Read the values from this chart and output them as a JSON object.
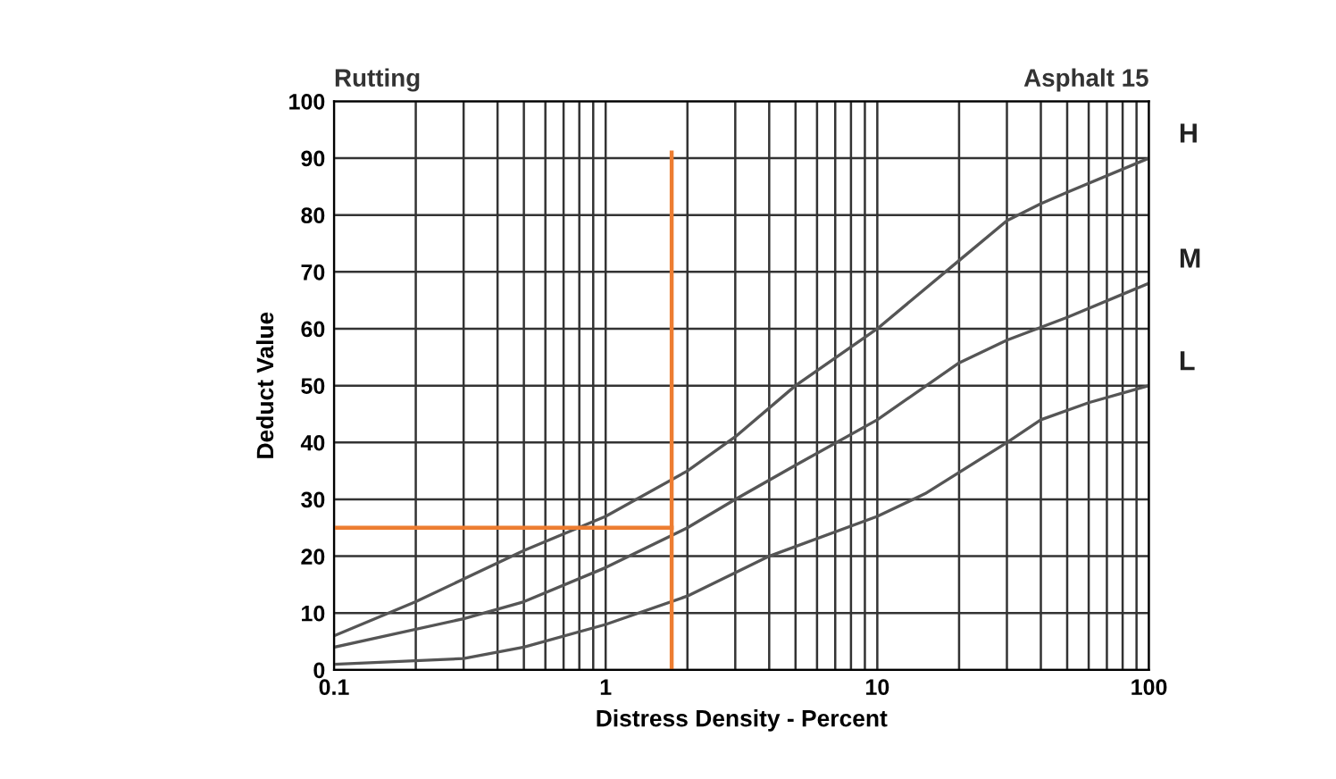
{
  "chart_data": {
    "type": "line",
    "title": "Rutting",
    "subtitle": "Asphalt 15",
    "xlabel": "Distress Density - Percent",
    "ylabel": "Deduct Value",
    "log": "x",
    "xlim": [
      0.1,
      100
    ],
    "ylim": [
      0,
      100
    ],
    "xticks": [
      0.1,
      {
        "value": 0.2,
        "label": null
      },
      {
        "value": 0.3,
        "label": null
      },
      {
        "value": 0.4,
        "label": null
      },
      {
        "value": 0.5,
        "label": null
      },
      {
        "value": 0.6,
        "label": null
      },
      {
        "value": 0.7,
        "label": null
      },
      {
        "value": 0.8,
        "label": null
      },
      {
        "value": 0.9,
        "label": null
      },
      1,
      {
        "value": 2,
        "label": null
      },
      {
        "value": 3,
        "label": null
      },
      {
        "value": 4,
        "label": null
      },
      {
        "value": 5,
        "label": null
      },
      {
        "value": 6,
        "label": null
      },
      {
        "value": 7,
        "label": null
      },
      {
        "value": 8,
        "label": null
      },
      {
        "value": 9,
        "label": null
      },
      10,
      {
        "value": 20,
        "label": null
      },
      {
        "value": 30,
        "label": null
      },
      {
        "value": 40,
        "label": null
      },
      {
        "value": 50,
        "label": null
      },
      {
        "value": 60,
        "label": null
      },
      {
        "value": 70,
        "label": null
      },
      {
        "value": 80,
        "label": null
      },
      {
        "value": 90,
        "label": null
      },
      100
    ],
    "yticks": [
      0,
      10,
      20,
      30,
      40,
      50,
      60,
      70,
      80,
      90,
      100
    ],
    "grid": true,
    "legend": false,
    "marker": "none",
    "line_style": "solid",
    "series": [
      {
        "name": "H",
        "color": "#555555",
        "x": [
          0.1,
          0.2,
          0.5,
          1,
          2,
          3,
          5,
          10,
          20,
          30,
          40,
          50,
          100
        ],
        "values": [
          6,
          12,
          21,
          27,
          35,
          41,
          50,
          60,
          72,
          79,
          82,
          84,
          90
        ]
      },
      {
        "name": "M",
        "color": "#555555",
        "x": [
          0.1,
          0.3,
          0.5,
          1,
          2,
          3,
          5,
          10,
          20,
          30,
          50,
          100
        ],
        "values": [
          4,
          9,
          12,
          18,
          25,
          30,
          36,
          44,
          54,
          58,
          62,
          68
        ]
      },
      {
        "name": "L",
        "color": "#555555",
        "x": [
          0.1,
          0.3,
          0.5,
          1,
          2,
          4,
          10,
          15,
          30,
          40,
          60,
          100
        ],
        "values": [
          1,
          2,
          4,
          8,
          13,
          20,
          27,
          31,
          40,
          44,
          47,
          50
        ]
      },
      {
        "color": "#ed7d31",
        "x": [
          1.75,
          1.75
        ],
        "values": [
          0,
          91
        ]
      },
      {
        "color": "#ed7d31",
        "x": [
          0.1,
          1.75
        ],
        "values": [
          25,
          25
        ]
      }
    ]
  }
}
